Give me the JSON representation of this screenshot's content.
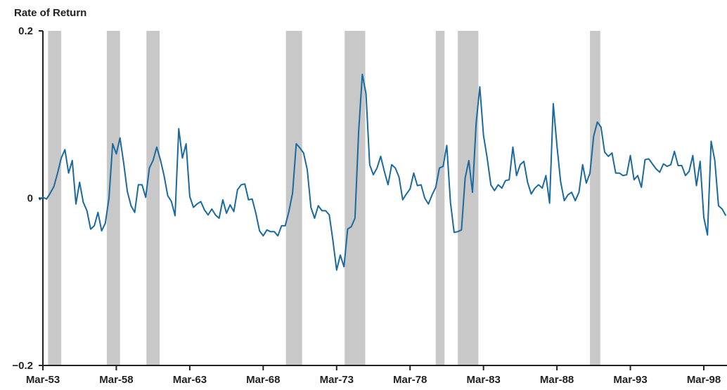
{
  "chart_data": {
    "type": "line",
    "ylabel": "Rate of Return",
    "title": "",
    "xlabel": "",
    "ylim": [
      -0.2,
      0.2
    ],
    "ytick_labels": [
      {
        "value": 0.2,
        "label": "0.2"
      },
      {
        "value": 0.0,
        "label": "0"
      },
      {
        "value": -0.2,
        "label": "−0.2"
      }
    ],
    "xlim": [
      1953.0,
      2000.0
    ],
    "xtick_labels": [
      {
        "value": 1953.25,
        "label": "Mar-53"
      },
      {
        "value": 1958.25,
        "label": "Mar-58"
      },
      {
        "value": 1963.25,
        "label": "Mar-63"
      },
      {
        "value": 1968.25,
        "label": "Mar-68"
      },
      {
        "value": 1973.25,
        "label": "Mar-73"
      },
      {
        "value": 1978.25,
        "label": "Mar-78"
      },
      {
        "value": 1983.25,
        "label": "Mar-83"
      },
      {
        "value": 1988.25,
        "label": "Mar-88"
      },
      {
        "value": 1993.25,
        "label": "Mar-93"
      },
      {
        "value": 1998.25,
        "label": "Mar-98"
      }
    ],
    "recessions": [
      [
        1953.6,
        1954.5
      ],
      [
        1957.6,
        1958.5
      ],
      [
        1960.3,
        1961.2
      ],
      [
        1969.8,
        1970.9
      ],
      [
        1973.8,
        1975.2
      ],
      [
        1980.0,
        1980.6
      ],
      [
        1981.5,
        1982.9
      ],
      [
        1990.5,
        1991.2
      ]
    ],
    "series": [
      {
        "color": "#1a6aa0",
        "points": [
          [
            1953.0,
            -0.002
          ],
          [
            1953.25,
            0.001
          ],
          [
            1953.5,
            -0.001
          ],
          [
            1953.75,
            0.006
          ],
          [
            1954.0,
            0.014
          ],
          [
            1954.25,
            0.03
          ],
          [
            1954.5,
            0.048
          ],
          [
            1954.75,
            0.058
          ],
          [
            1955.0,
            0.03
          ],
          [
            1955.25,
            0.045
          ],
          [
            1955.5,
            -0.007
          ],
          [
            1955.75,
            0.019
          ],
          [
            1956.0,
            -0.005
          ],
          [
            1956.25,
            -0.015
          ],
          [
            1956.5,
            -0.037
          ],
          [
            1956.75,
            -0.033
          ],
          [
            1957.0,
            -0.017
          ],
          [
            1957.25,
            -0.039
          ],
          [
            1957.5,
            -0.03
          ],
          [
            1957.75,
            0.0
          ],
          [
            1958.0,
            0.065
          ],
          [
            1958.25,
            0.053
          ],
          [
            1958.5,
            0.072
          ],
          [
            1958.75,
            0.042
          ],
          [
            1959.0,
            0.008
          ],
          [
            1959.25,
            -0.009
          ],
          [
            1959.5,
            -0.017
          ],
          [
            1959.75,
            0.016
          ],
          [
            1960.0,
            0.016
          ],
          [
            1960.25,
            0.001
          ],
          [
            1960.5,
            0.036
          ],
          [
            1960.75,
            0.045
          ],
          [
            1961.0,
            0.061
          ],
          [
            1961.25,
            0.046
          ],
          [
            1961.5,
            0.027
          ],
          [
            1961.75,
            0.003
          ],
          [
            1962.0,
            -0.004
          ],
          [
            1962.25,
            -0.021
          ],
          [
            1962.5,
            0.083
          ],
          [
            1962.75,
            0.048
          ],
          [
            1963.0,
            0.065
          ],
          [
            1963.25,
            0.002
          ],
          [
            1963.5,
            -0.011
          ],
          [
            1963.75,
            -0.007
          ],
          [
            1964.0,
            -0.004
          ],
          [
            1964.25,
            -0.014
          ],
          [
            1964.5,
            -0.02
          ],
          [
            1964.75,
            -0.013
          ],
          [
            1965.0,
            -0.02
          ],
          [
            1965.25,
            -0.024
          ],
          [
            1965.5,
            -0.002
          ],
          [
            1965.75,
            -0.018
          ],
          [
            1966.0,
            -0.008
          ],
          [
            1966.25,
            -0.016
          ],
          [
            1966.5,
            0.01
          ],
          [
            1966.75,
            0.016
          ],
          [
            1967.0,
            0.017
          ],
          [
            1967.25,
            -0.002
          ],
          [
            1967.5,
            -0.001
          ],
          [
            1967.75,
            -0.018
          ],
          [
            1968.0,
            -0.039
          ],
          [
            1968.25,
            -0.045
          ],
          [
            1968.5,
            -0.038
          ],
          [
            1968.75,
            -0.04
          ],
          [
            1969.0,
            -0.04
          ],
          [
            1969.25,
            -0.045
          ],
          [
            1969.5,
            -0.033
          ],
          [
            1969.75,
            -0.033
          ],
          [
            1970.0,
            -0.016
          ],
          [
            1970.25,
            0.006
          ],
          [
            1970.5,
            0.065
          ],
          [
            1970.75,
            0.06
          ],
          [
            1971.0,
            0.054
          ],
          [
            1971.25,
            0.034
          ],
          [
            1971.5,
            -0.011
          ],
          [
            1971.75,
            -0.024
          ],
          [
            1972.0,
            -0.009
          ],
          [
            1972.25,
            -0.015
          ],
          [
            1972.5,
            -0.015
          ],
          [
            1972.75,
            -0.02
          ],
          [
            1973.0,
            -0.051
          ],
          [
            1973.25,
            -0.086
          ],
          [
            1973.5,
            -0.068
          ],
          [
            1973.75,
            -0.082
          ],
          [
            1974.0,
            -0.037
          ],
          [
            1974.25,
            -0.034
          ],
          [
            1974.5,
            -0.024
          ],
          [
            1974.75,
            0.08
          ],
          [
            1975.0,
            0.148
          ],
          [
            1975.25,
            0.125
          ],
          [
            1975.5,
            0.04
          ],
          [
            1975.75,
            0.028
          ],
          [
            1976.0,
            0.036
          ],
          [
            1976.25,
            0.05
          ],
          [
            1976.5,
            0.032
          ],
          [
            1976.75,
            0.016
          ],
          [
            1977.0,
            0.04
          ],
          [
            1977.25,
            0.036
          ],
          [
            1977.5,
            0.025
          ],
          [
            1977.75,
            -0.002
          ],
          [
            1978.0,
            0.005
          ],
          [
            1978.25,
            0.011
          ],
          [
            1978.5,
            0.03
          ],
          [
            1978.75,
            0.015
          ],
          [
            1979.0,
            0.016
          ],
          [
            1979.25,
            0.0
          ],
          [
            1979.5,
            -0.007
          ],
          [
            1979.75,
            0.004
          ],
          [
            1980.0,
            0.013
          ],
          [
            1980.25,
            0.036
          ],
          [
            1980.5,
            0.038
          ],
          [
            1980.75,
            0.063
          ],
          [
            1981.0,
            -0.005
          ],
          [
            1981.25,
            -0.041
          ],
          [
            1981.5,
            -0.04
          ],
          [
            1981.75,
            -0.038
          ],
          [
            1982.0,
            0.024
          ],
          [
            1982.25,
            0.045
          ],
          [
            1982.5,
            0.007
          ],
          [
            1982.75,
            0.09
          ],
          [
            1983.0,
            0.133
          ],
          [
            1983.25,
            0.075
          ],
          [
            1983.5,
            0.048
          ],
          [
            1983.75,
            0.016
          ],
          [
            1984.0,
            0.009
          ],
          [
            1984.25,
            0.016
          ],
          [
            1984.5,
            0.012
          ],
          [
            1984.75,
            0.021
          ],
          [
            1985.0,
            0.022
          ],
          [
            1985.25,
            0.061
          ],
          [
            1985.5,
            0.027
          ],
          [
            1985.75,
            0.04
          ],
          [
            1986.0,
            0.044
          ],
          [
            1986.25,
            0.019
          ],
          [
            1986.5,
            0.005
          ],
          [
            1986.75,
            0.012
          ],
          [
            1987.0,
            0.016
          ],
          [
            1987.25,
            0.012
          ],
          [
            1987.5,
            0.027
          ],
          [
            1987.75,
            -0.006
          ],
          [
            1988.0,
            0.113
          ],
          [
            1988.25,
            0.063
          ],
          [
            1988.5,
            0.02
          ],
          [
            1988.75,
            -0.003
          ],
          [
            1989.0,
            0.004
          ],
          [
            1989.25,
            0.007
          ],
          [
            1989.5,
            -0.003
          ],
          [
            1989.75,
            0.007
          ],
          [
            1990.0,
            0.04
          ],
          [
            1990.25,
            0.018
          ],
          [
            1990.5,
            0.03
          ],
          [
            1990.75,
            0.074
          ],
          [
            1991.0,
            0.091
          ],
          [
            1991.25,
            0.085
          ],
          [
            1991.5,
            0.055
          ],
          [
            1991.75,
            0.05
          ],
          [
            1992.0,
            0.054
          ],
          [
            1992.25,
            0.03
          ],
          [
            1992.5,
            0.03
          ],
          [
            1992.75,
            0.027
          ],
          [
            1993.0,
            0.028
          ],
          [
            1993.25,
            0.051
          ],
          [
            1993.5,
            0.022
          ],
          [
            1993.75,
            0.027
          ],
          [
            1994.0,
            0.013
          ],
          [
            1994.25,
            0.046
          ],
          [
            1994.5,
            0.047
          ],
          [
            1994.75,
            0.041
          ],
          [
            1995.0,
            0.035
          ],
          [
            1995.25,
            0.031
          ],
          [
            1995.5,
            0.041
          ],
          [
            1995.75,
            0.038
          ],
          [
            1996.0,
            0.04
          ],
          [
            1996.25,
            0.056
          ],
          [
            1996.5,
            0.039
          ],
          [
            1996.75,
            0.039
          ],
          [
            1997.0,
            0.027
          ],
          [
            1997.25,
            0.032
          ],
          [
            1997.5,
            0.051
          ],
          [
            1997.75,
            0.015
          ],
          [
            1998.0,
            0.044
          ],
          [
            1998.25,
            -0.023
          ],
          [
            1998.5,
            -0.044
          ],
          [
            1998.75,
            0.068
          ],
          [
            1999.0,
            0.045
          ],
          [
            1999.25,
            -0.009
          ],
          [
            1999.5,
            -0.013
          ],
          [
            1999.75,
            -0.021
          ]
        ]
      }
    ]
  }
}
